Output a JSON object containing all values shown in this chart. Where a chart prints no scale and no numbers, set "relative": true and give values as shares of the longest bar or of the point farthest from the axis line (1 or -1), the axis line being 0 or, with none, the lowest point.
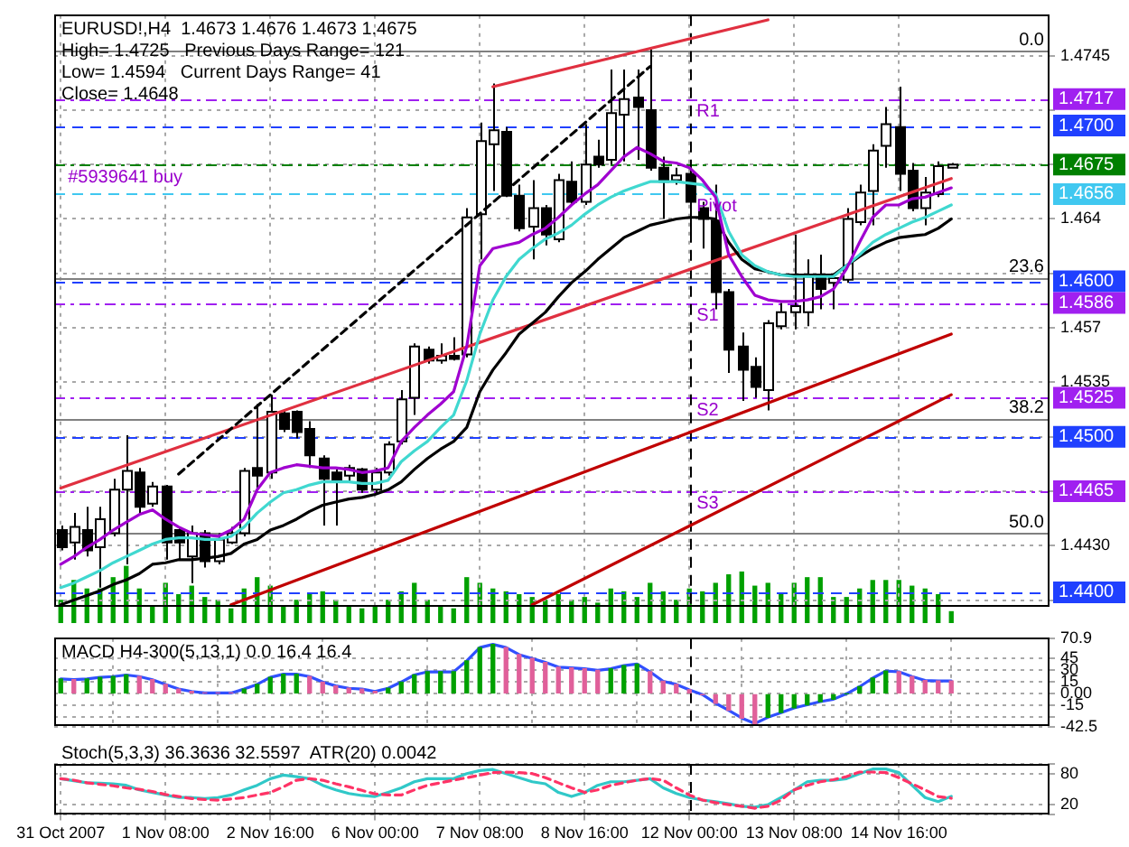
{
  "chart_data": [
    {
      "type": "candlestick",
      "title": "EURUSD!,H4  1.4673 1.4676 1.4673 1.4675",
      "categories": [
        "31 Oct 2007",
        null,
        null,
        null,
        null,
        null,
        null,
        null,
        "1 Nov 08:00",
        null,
        null,
        null,
        null,
        null,
        null,
        null,
        "2 Nov 16:00",
        null,
        null,
        null,
        null,
        null,
        null,
        null,
        "6 Nov 00:00",
        null,
        null,
        null,
        null,
        null,
        null,
        null,
        "7 Nov 08:00",
        null,
        null,
        null,
        null,
        null,
        null,
        null,
        "8 Nov 16:00",
        null,
        null,
        null,
        null,
        null,
        null,
        null,
        "12 Nov 00:00",
        null,
        null,
        null,
        null,
        null,
        null,
        null,
        "13 Nov 08:00",
        null,
        null,
        null,
        null,
        null,
        null,
        null,
        "14 Nov 16:00",
        null,
        null,
        null,
        null,
        null,
        null,
        null,
        null,
        null,
        null,
        null
      ],
      "ohlc": [
        [
          1.444,
          1.4443,
          1.4427,
          1.4429
        ],
        [
          1.4432,
          1.4451,
          1.4421,
          1.4442
        ],
        [
          1.444,
          1.4455,
          1.4423,
          1.4427
        ],
        [
          1.4429,
          1.4455,
          1.4403,
          1.4447
        ],
        [
          1.4438,
          1.4473,
          1.4436,
          1.4466
        ],
        [
          1.4466,
          1.4501,
          1.4418,
          1.4478
        ],
        [
          1.4477,
          1.448,
          1.4451,
          1.4455
        ],
        [
          1.4457,
          1.4471,
          1.4455,
          1.4468
        ],
        [
          1.4468,
          1.4469,
          1.4421,
          1.4432
        ],
        [
          1.444,
          1.4442,
          1.4421,
          1.4432
        ],
        [
          1.4423,
          1.4443,
          1.4406,
          1.4438
        ],
        [
          1.4438,
          1.444,
          1.4416,
          1.442
        ],
        [
          1.442,
          1.4438,
          1.4418,
          1.4434
        ],
        [
          1.4432,
          1.4442,
          1.4431,
          1.4438
        ],
        [
          1.4438,
          1.448,
          1.4436,
          1.4478
        ],
        [
          1.448,
          1.4521,
          1.4466,
          1.4475
        ],
        [
          1.4477,
          1.4527,
          1.4473,
          1.4516
        ],
        [
          1.4515,
          1.4517,
          1.4503,
          1.4505
        ],
        [
          1.4516,
          1.4517,
          1.4499,
          1.4503
        ],
        [
          1.4505,
          1.451,
          1.448,
          1.4488
        ],
        [
          1.4486,
          1.4488,
          1.4443,
          1.4473
        ],
        [
          1.4477,
          1.4479,
          1.4443,
          1.4471
        ],
        [
          1.4475,
          1.4482,
          1.4471,
          1.448
        ],
        [
          1.4479,
          1.448,
          1.4464,
          1.4466
        ],
        [
          1.4466,
          1.448,
          1.4464,
          1.4477
        ],
        [
          1.4477,
          1.4497,
          1.4475,
          1.4495
        ],
        [
          1.4497,
          1.453,
          1.4495,
          1.4524
        ],
        [
          1.4525,
          1.456,
          1.4514,
          1.4558
        ],
        [
          1.4556,
          1.4558,
          1.4547,
          1.4549
        ],
        [
          1.4549,
          1.456,
          1.4547,
          1.4552
        ],
        [
          1.4552,
          1.4564,
          1.4549,
          1.455
        ],
        [
          1.4553,
          1.4647,
          1.4551,
          1.4641
        ],
        [
          1.4643,
          1.4702,
          1.4614,
          1.469
        ],
        [
          1.4688,
          1.4727,
          1.4658,
          1.4697
        ],
        [
          1.4696,
          1.4699,
          1.4654,
          1.4655
        ],
        [
          1.4655,
          1.4662,
          1.4632,
          1.4634
        ],
        [
          1.4635,
          1.4665,
          1.4614,
          1.4647
        ],
        [
          1.4647,
          1.4649,
          1.4623,
          1.463
        ],
        [
          1.4627,
          1.4669,
          1.4625,
          1.4665
        ],
        [
          1.4664,
          1.4677,
          1.4649,
          1.4651
        ],
        [
          1.4651,
          1.4701,
          1.4649,
          1.4675
        ],
        [
          1.468,
          1.4691,
          1.4673,
          1.4675
        ],
        [
          1.4678,
          1.4736,
          1.4675,
          1.4708
        ],
        [
          1.4707,
          1.4736,
          1.4677,
          1.4717
        ],
        [
          1.4718,
          1.4736,
          1.4678,
          1.4712
        ],
        [
          1.471,
          1.4749,
          1.4671,
          1.4673
        ],
        [
          1.4673,
          1.468,
          1.464,
          1.4664
        ],
        [
          1.4665,
          1.4673,
          1.4662,
          1.4668
        ],
        [
          1.4669,
          1.4673,
          1.4627,
          1.4651
        ],
        [
          1.4647,
          1.4651,
          1.4621,
          1.464
        ],
        [
          1.4639,
          1.4662,
          1.4582,
          1.4593
        ],
        [
          1.4593,
          1.4595,
          1.4541,
          1.4556
        ],
        [
          1.4558,
          1.4567,
          1.4523,
          1.4543
        ],
        [
          1.4545,
          1.4551,
          1.4525,
          1.4532
        ],
        [
          1.453,
          1.4575,
          1.4517,
          1.4573
        ],
        [
          1.4571,
          1.4586,
          1.4569,
          1.458
        ],
        [
          1.458,
          1.463,
          1.4569,
          1.4584
        ],
        [
          1.458,
          1.4614,
          1.4571,
          1.4603
        ],
        [
          1.4604,
          1.4617,
          1.4582,
          1.4595
        ],
        [
          1.4599,
          1.4604,
          1.4582,
          1.4602
        ],
        [
          1.4601,
          1.4647,
          1.4599,
          1.464
        ],
        [
          1.4638,
          1.4662,
          1.4636,
          1.4657
        ],
        [
          1.4658,
          1.4688,
          1.4636,
          1.4684
        ],
        [
          1.4687,
          1.4712,
          1.4673,
          1.4701
        ],
        [
          1.4699,
          1.4725,
          1.4658,
          1.4669
        ],
        [
          1.4671,
          1.4676,
          1.4645,
          1.4647
        ],
        [
          1.4647,
          1.4667,
          1.4636,
          1.4657
        ],
        [
          1.4656,
          1.4677,
          1.4654,
          1.4674
        ],
        [
          1.4673,
          1.4676,
          1.4673,
          1.4675
        ],
        null,
        null,
        null,
        null,
        null,
        null,
        null
      ],
      "series": [
        {
          "type": "line",
          "color": "#a000d0",
          "values": [
            1.4418,
            1.4423,
            1.4429,
            1.4434,
            1.444,
            1.4445,
            1.445,
            1.4453,
            1.4447,
            1.4442,
            1.4438,
            1.4437,
            1.4436,
            1.444,
            1.4447,
            1.4466,
            1.4477,
            1.448,
            1.4482,
            1.4481,
            1.448,
            1.448,
            1.4479,
            1.4477,
            1.4478,
            1.448,
            1.4497,
            1.4506,
            1.4514,
            1.4521,
            1.4529,
            1.4558,
            1.461,
            1.4621,
            1.4623,
            1.4625,
            1.463,
            1.4634,
            1.4641,
            1.4649,
            1.4656,
            1.4662,
            1.4671,
            1.468,
            1.4686,
            1.4682,
            1.4677,
            1.4676,
            1.4673,
            1.4665,
            1.4654,
            1.4617,
            1.4603,
            1.4591,
            1.4588,
            1.4587,
            1.4587,
            1.4588,
            1.459,
            1.4595,
            1.4608,
            1.4625,
            1.4641,
            1.4649,
            1.4649,
            1.4653,
            1.4654,
            1.4657,
            1.466,
            null,
            null,
            null,
            null,
            null,
            null,
            null
          ]
        },
        {
          "type": "line",
          "color": "#40d8d0",
          "values": [
            1.4403,
            1.4406,
            1.441,
            1.4414,
            1.4419,
            1.4423,
            1.4427,
            1.4431,
            1.4434,
            1.4435,
            1.4435,
            1.4434,
            1.4434,
            1.4436,
            1.4442,
            1.4451,
            1.4458,
            1.4464,
            1.4466,
            1.4469,
            1.4471,
            1.4471,
            1.4471,
            1.447,
            1.447,
            1.4472,
            1.4484,
            1.4491,
            1.4497,
            1.4506,
            1.4514,
            1.4536,
            1.4566,
            1.4588,
            1.4603,
            1.4614,
            1.4621,
            1.4627,
            1.4631,
            1.4636,
            1.4643,
            1.4649,
            1.4654,
            1.4658,
            1.4661,
            1.4664,
            1.4664,
            1.4664,
            1.4663,
            1.4662,
            1.4656,
            1.4632,
            1.4617,
            1.461,
            1.4606,
            1.4604,
            1.4603,
            1.4603,
            1.4603,
            1.4603,
            1.461,
            1.4617,
            1.4625,
            1.463,
            1.4634,
            1.4638,
            1.4641,
            1.4645,
            1.4649,
            null,
            null,
            null,
            null,
            null,
            null,
            null
          ]
        },
        {
          "type": "line",
          "color": "#000000",
          "values": [
            1.4392,
            1.4395,
            1.4398,
            1.4401,
            1.4405,
            1.4408,
            1.4412,
            1.4418,
            1.4419,
            1.4421,
            1.4421,
            1.4422,
            1.4423,
            1.4425,
            1.4431,
            1.4434,
            1.444,
            1.4443,
            1.4447,
            1.4452,
            1.4456,
            1.4458,
            1.446,
            1.4461,
            1.4463,
            1.4466,
            1.4471,
            1.4479,
            1.4486,
            1.4492,
            1.4497,
            1.4506,
            1.4529,
            1.4543,
            1.4554,
            1.4566,
            1.4573,
            1.458,
            1.459,
            1.4599,
            1.4606,
            1.4614,
            1.4621,
            1.4628,
            1.4632,
            1.4636,
            1.4638,
            1.464,
            1.4641,
            1.4641,
            1.464,
            1.4625,
            1.4614,
            1.4608,
            1.4606,
            1.4604,
            1.4604,
            1.4604,
            1.4604,
            1.4604,
            1.461,
            1.4616,
            1.4621,
            1.4625,
            1.4628,
            1.4629,
            1.463,
            1.4634,
            1.464,
            null,
            null,
            null,
            null,
            null,
            null,
            null
          ]
        },
        {
          "type": "line",
          "color": "#c00000",
          "values": [
            null,
            null,
            null,
            null,
            null,
            null,
            null,
            null,
            null,
            null,
            null,
            null,
            null,
            1.4392,
            null,
            null,
            null,
            null,
            null,
            null,
            null,
            null,
            null,
            null,
            null,
            null,
            null,
            null,
            null,
            null,
            null,
            null,
            null,
            null,
            null,
            null,
            null,
            null,
            null,
            null,
            null,
            null,
            null,
            null,
            null,
            null,
            null,
            null,
            null,
            null,
            null,
            null,
            null,
            null,
            null,
            null,
            null,
            null,
            null,
            null,
            null,
            null,
            null,
            null,
            null,
            null,
            null,
            null,
            1.4566,
            null,
            null,
            null,
            null,
            null,
            null,
            null
          ]
        },
        {
          "type": "line",
          "color": "#c00000",
          "values": [
            null,
            null,
            null,
            null,
            null,
            null,
            null,
            null,
            null,
            null,
            null,
            null,
            null,
            null,
            null,
            null,
            null,
            null,
            null,
            null,
            null,
            null,
            null,
            null,
            null,
            null,
            null,
            null,
            null,
            null,
            null,
            null,
            null,
            null,
            null,
            null,
            1.4392,
            null,
            null,
            null,
            null,
            null,
            null,
            null,
            null,
            null,
            null,
            null,
            null,
            null,
            null,
            null,
            null,
            null,
            null,
            null,
            null,
            null,
            null,
            null,
            null,
            null,
            null,
            null,
            null,
            null,
            null,
            null,
            1.4527,
            null,
            null,
            null,
            null,
            null,
            null,
            null
          ]
        },
        {
          "type": "line",
          "color": "#e03040",
          "values": [
            null,
            null,
            null,
            null,
            null,
            null,
            null,
            null,
            null,
            null,
            null,
            null,
            null,
            null,
            null,
            null,
            null,
            null,
            null,
            null,
            null,
            null,
            null,
            null,
            null,
            null,
            null,
            null,
            null,
            null,
            null,
            null,
            null,
            1.4725,
            null,
            null,
            null,
            null,
            null,
            null,
            null,
            null,
            null,
            null,
            null,
            null,
            null,
            null,
            null,
            null,
            null,
            null,
            null,
            null,
            1.4768,
            null,
            null,
            null,
            null,
            null,
            null,
            null,
            null,
            null,
            null,
            null,
            null,
            null,
            null,
            null,
            null,
            null,
            null,
            null,
            null,
            null
          ]
        },
        {
          "type": "line",
          "color": "#e03040",
          "values": [
            1.4467,
            null,
            null,
            null,
            null,
            null,
            null,
            null,
            null,
            null,
            null,
            null,
            null,
            null,
            null,
            null,
            null,
            null,
            null,
            null,
            null,
            null,
            null,
            null,
            null,
            null,
            null,
            null,
            null,
            null,
            null,
            null,
            null,
            null,
            null,
            null,
            null,
            null,
            null,
            null,
            null,
            null,
            null,
            null,
            null,
            null,
            null,
            null,
            null,
            null,
            null,
            null,
            null,
            null,
            null,
            null,
            null,
            null,
            null,
            null,
            null,
            null,
            null,
            null,
            null,
            null,
            null,
            null,
            1.4666,
            null,
            null,
            null,
            null,
            null,
            null,
            null
          ]
        },
        {
          "type": "line",
          "color": "#000000",
          "line_style": "dashed",
          "values": [
            null,
            null,
            null,
            null,
            null,
            null,
            null,
            null,
            null,
            1.4476,
            null,
            null,
            null,
            null,
            null,
            null,
            null,
            null,
            null,
            null,
            null,
            null,
            null,
            null,
            null,
            null,
            null,
            null,
            null,
            null,
            null,
            null,
            null,
            null,
            null,
            null,
            null,
            null,
            null,
            null,
            null,
            null,
            null,
            null,
            null,
            1.4738,
            null,
            null,
            null,
            null,
            null,
            null,
            null,
            null,
            null,
            null,
            null,
            null,
            null,
            null,
            null,
            null,
            null,
            null,
            null,
            null,
            null,
            null,
            null,
            null,
            null,
            null,
            null,
            null,
            null,
            null
          ]
        }
      ],
      "ylim": [
        1.439,
        1.4771
      ],
      "yticks": [
        {
          "value": 1.4395,
          "label": null
        },
        {
          "value": 1.443,
          "label": "1.4430"
        },
        {
          "value": 1.4465,
          "label": null
        },
        {
          "value": 1.45,
          "label": null
        },
        1.4535,
        1.457,
        {
          "value": 1.4605,
          "label": null
        },
        1.464,
        {
          "value": 1.4675,
          "label": null
        },
        {
          "value": 1.471,
          "label": null
        },
        1.4745
      ],
      "tick_labels": "y",
      "grid": true,
      "ref_lines": [
        {
          "axis": "y",
          "value": 1.4748,
          "color": "#808080",
          "line_style": "solid"
        },
        {
          "axis": "y",
          "value": 1.4602,
          "color": "#808080",
          "line_style": "solid"
        },
        {
          "axis": "y",
          "value": 1.4512,
          "color": "#808080",
          "line_style": "solid"
        },
        {
          "axis": "y",
          "value": 1.4438,
          "color": "#808080",
          "line_style": "solid"
        },
        {
          "axis": "y",
          "value": 1.4717,
          "label": "1.4717",
          "color": "#a020f0",
          "line_style": "dotted"
        },
        {
          "axis": "y",
          "value": 1.47,
          "label": "1.4700",
          "color": "#2040ff",
          "line_style": "dashed"
        },
        {
          "axis": "y",
          "value": 1.4675,
          "label": "1.4675",
          "color": "#008000",
          "line_style": "dotted"
        },
        {
          "axis": "y",
          "value": 1.4656,
          "label": "1.4656",
          "color": "#40c8f0",
          "line_style": "dashed"
        },
        {
          "axis": "y",
          "value": 1.46,
          "label": "1.4600",
          "color": "#2040ff",
          "line_style": "dashed"
        },
        {
          "axis": "y",
          "value": 1.4586,
          "label": "1.4586",
          "color": "#a020f0",
          "line_style": "dotted"
        },
        {
          "axis": "y",
          "value": 1.4525,
          "label": "1.4525",
          "color": "#a020f0",
          "line_style": "dotted"
        },
        {
          "axis": "y",
          "value": 1.45,
          "label": "1.4500",
          "color": "#2040ff",
          "line_style": "dashed"
        },
        {
          "axis": "y",
          "value": 1.4465,
          "label": "1.4465",
          "color": "#a020f0",
          "line_style": "dotted"
        },
        {
          "axis": "y",
          "value": 1.44,
          "label": "1.4400",
          "color": "#2040ff",
          "line_style": "dashed"
        },
        {
          "axis": "x",
          "value": "12 Nov 00:00",
          "color": "#000000",
          "line_style": "dashed"
        }
      ],
      "annotations": [
        "High= 1.4725   Previous Days Range= 121",
        "Low= 1.4594   Current Days Range= 41",
        "Close= 1.4648",
        {
          "text": "#5939641 buy",
          "x": "31 Oct 2007",
          "y": 1.4675
        },
        {
          "text": "0.0",
          "y": 1.4748
        },
        {
          "text": "23.6",
          "y": 1.4602
        },
        {
          "text": "38.2",
          "y": 1.4512
        },
        {
          "text": "50.0",
          "y": 1.4438
        },
        {
          "text": "R1",
          "x": "12 Nov 00:00",
          "y": 1.4717
        },
        {
          "text": "Pivot",
          "x": "12 Nov 00:00",
          "y": 1.4656
        },
        {
          "text": "S1",
          "x": "12 Nov 00:00",
          "y": 1.4586
        },
        {
          "text": "S2",
          "x": "12 Nov 00:00",
          "y": 1.4525
        },
        {
          "text": "S3",
          "x": "12 Nov 00:00",
          "y": 1.4465
        }
      ]
    },
    {
      "type": "bar",
      "relative": true,
      "tick_labels": false,
      "color": "#00a000",
      "categories": [
        "31 Oct 2007",
        null,
        null,
        null,
        null,
        null,
        null,
        null,
        "1 Nov 08:00",
        null,
        null,
        null,
        null,
        null,
        null,
        null,
        "2 Nov 16:00",
        null,
        null,
        null,
        null,
        null,
        null,
        null,
        "6 Nov 00:00",
        null,
        null,
        null,
        null,
        null,
        null,
        null,
        "7 Nov 08:00",
        null,
        null,
        null,
        null,
        null,
        null,
        null,
        "8 Nov 16:00",
        null,
        null,
        null,
        null,
        null,
        null,
        null,
        "12 Nov 00:00",
        null,
        null,
        null,
        null,
        null,
        null,
        null,
        "13 Nov 08:00",
        null,
        null,
        null,
        null,
        null,
        null,
        null,
        "14 Nov 16:00",
        null,
        null,
        null,
        null,
        null,
        null,
        null,
        null,
        null,
        null,
        null
      ],
      "values": [
        0.4,
        0.75,
        0.6,
        0.6,
        0.8,
        1,
        0.6,
        0.3,
        0.7,
        0.5,
        0.65,
        0.45,
        0.4,
        0.25,
        0.6,
        0.8,
        0.65,
        0.3,
        0.4,
        0.5,
        0.55,
        0.4,
        0.3,
        0.25,
        0.3,
        0.4,
        0.55,
        0.7,
        0.4,
        0.3,
        0.25,
        0.8,
        0.7,
        0.6,
        0.55,
        0.5,
        0.45,
        0.4,
        0.5,
        0.4,
        0.45,
        0.35,
        0.6,
        0.55,
        0.45,
        0.7,
        0.55,
        0.4,
        0.6,
        0.55,
        0.7,
        0.85,
        0.9,
        0.65,
        0.7,
        0.5,
        0.7,
        0.8,
        0.8,
        0.45,
        0.45,
        0.6,
        0.75,
        0.75,
        0.75,
        0.65,
        0.6,
        0.5,
        0.2,
        null,
        null,
        null,
        null,
        null,
        null,
        null
      ]
    },
    {
      "type": "bar",
      "title": "MACD H4-300(5,13,1) 0.0 16.4 16.4",
      "tick_labels": "y",
      "grid": true,
      "categories": [
        "31 Oct 2007",
        null,
        null,
        null,
        null,
        null,
        null,
        null,
        "1 Nov 08:00",
        null,
        null,
        null,
        null,
        null,
        null,
        null,
        "2 Nov 16:00",
        null,
        null,
        null,
        null,
        null,
        null,
        null,
        "6 Nov 00:00",
        null,
        null,
        null,
        null,
        null,
        null,
        null,
        "7 Nov 08:00",
        null,
        null,
        null,
        null,
        null,
        null,
        null,
        "8 Nov 16:00",
        null,
        null,
        null,
        null,
        null,
        null,
        null,
        "12 Nov 00:00",
        null,
        null,
        null,
        null,
        null,
        null,
        null,
        "13 Nov 08:00",
        null,
        null,
        null,
        null,
        null,
        null,
        null,
        "14 Nov 16:00",
        null,
        null,
        null,
        null,
        null,
        null,
        null,
        null,
        null,
        null,
        null
      ],
      "series": [
        {
          "type": "bar",
          "colors": [
            "#00a000",
            "#e0609a",
            "#00a000",
            "#00a000",
            "#00a000",
            "#00a000",
            "#e0609a",
            "#e0609a",
            "#e0609a",
            "#e0609a",
            "#e0609a",
            "#e0609a",
            "#e0609a",
            "#e0609a",
            "#00a000",
            "#00a000",
            "#00a000",
            "#00a000",
            "#00a000",
            "#e0609a",
            "#e0609a",
            "#e0609a",
            "#e0609a",
            "#e0609a",
            "#e0609a",
            "#00a000",
            "#00a000",
            "#00a000",
            "#00a000",
            "#00a000",
            "#00a000",
            "#00a000",
            "#00a000",
            "#00a000",
            "#e0609a",
            "#e0609a",
            "#e0609a",
            "#e0609a",
            "#e0609a",
            "#e0609a",
            "#e0609a",
            "#e0609a",
            "#00a000",
            "#00a000",
            "#00a000",
            "#e0609a",
            "#e0609a",
            "#e0609a",
            "#e0609a",
            "#e0609a",
            "#e0609a",
            "#e0609a",
            "#e0609a",
            "#e0609a",
            "#00a000",
            "#00a000",
            "#00a000",
            "#00a000",
            "#00a000",
            "#00a000",
            "#00a000",
            "#00a000",
            "#00a000",
            "#00a000",
            "#e0609a",
            "#e0609a",
            "#e0609a",
            "#e0609a",
            "#e0609a",
            null,
            null,
            null,
            null,
            null,
            null,
            null
          ],
          "values": [
            19,
            18,
            19,
            21,
            22,
            24,
            22,
            18,
            12,
            6,
            3,
            1,
            1,
            1,
            6,
            12,
            21,
            25,
            25,
            22,
            15,
            10,
            7,
            6,
            3,
            7,
            15,
            24,
            28,
            28,
            28,
            42,
            59,
            63,
            59,
            50,
            45,
            40,
            34,
            33,
            32,
            30,
            32,
            36,
            38,
            28,
            16,
            12,
            5,
            -1,
            -12,
            -21,
            -31,
            -38,
            -30,
            -24,
            -18,
            -14,
            -10,
            -7,
            0,
            9,
            20,
            29,
            28,
            22,
            17,
            16.4,
            16.4,
            null,
            null,
            null,
            null,
            null,
            null,
            null
          ]
        },
        {
          "type": "line",
          "color": "#3050ff",
          "values": [
            19,
            18,
            19,
            21,
            22,
            24,
            22,
            18,
            12,
            6,
            3,
            1,
            1,
            1,
            6,
            12,
            21,
            25,
            25,
            22,
            15,
            10,
            7,
            6,
            3,
            7,
            15,
            24,
            28,
            28,
            28,
            42,
            59,
            63,
            59,
            50,
            45,
            40,
            34,
            33,
            32,
            30,
            32,
            36,
            38,
            28,
            16,
            12,
            5,
            -1,
            -12,
            -21,
            -31,
            -38,
            -30,
            -24,
            -18,
            -14,
            -10,
            -7,
            0,
            9,
            20,
            29,
            28,
            22,
            17,
            16.4,
            16.4,
            null,
            null,
            null,
            null,
            null,
            null,
            null
          ]
        }
      ],
      "ylim": [
        -42.5,
        70.9
      ],
      "yticks": [
        -42.5,
        {
          "value": -30,
          "label": null
        },
        -15,
        {
          "value": 0,
          "label": "0.00"
        },
        15,
        30,
        45,
        70.9
      ],
      "ref_lines": [
        {
          "axis": "x",
          "value": "12 Nov 00:00",
          "color": "#000000",
          "line_style": "dashed"
        }
      ]
    },
    {
      "type": "line",
      "title": "Stoch(5,3,3) 36.3636 32.5597  ATR(20) 0.0042",
      "grid": true,
      "categories": [
        "31 Oct 2007",
        null,
        null,
        null,
        null,
        null,
        null,
        null,
        "1 Nov 08:00",
        null,
        null,
        null,
        null,
        null,
        null,
        null,
        "2 Nov 16:00",
        null,
        null,
        null,
        null,
        null,
        null,
        null,
        "6 Nov 00:00",
        null,
        null,
        null,
        null,
        null,
        null,
        null,
        "7 Nov 08:00",
        null,
        null,
        null,
        null,
        null,
        null,
        null,
        "8 Nov 16:00",
        null,
        null,
        null,
        null,
        null,
        null,
        null,
        "12 Nov 00:00",
        null,
        null,
        null,
        null,
        null,
        null,
        null,
        "13 Nov 08:00",
        null,
        null,
        null,
        null,
        null,
        null,
        null,
        "14 Nov 16:00",
        null,
        null,
        null,
        null,
        null,
        null,
        null,
        null,
        null,
        null,
        null
      ],
      "series": [
        {
          "color": "#30c8c8",
          "values": [
            71,
            67,
            63,
            62,
            61,
            58,
            49,
            44,
            39,
            34,
            34,
            32,
            34,
            39,
            49,
            58,
            71,
            78,
            75,
            71,
            58,
            49,
            42,
            38,
            36,
            44,
            53,
            65,
            71,
            71,
            71,
            81,
            87,
            89,
            81,
            73,
            65,
            61,
            44,
            36,
            44,
            58,
            65,
            65,
            68,
            71,
            53,
            42,
            34,
            29,
            26,
            22,
            17,
            15,
            20,
            34,
            49,
            65,
            68,
            68,
            71,
            81,
            90,
            90,
            83,
            58,
            34,
            26,
            36.3636,
            null,
            null,
            null,
            null,
            null,
            null,
            null
          ]
        },
        {
          "color": "#ff3366",
          "line_style": "dashed",
          "values": [
            71,
            68,
            63,
            60,
            57,
            53,
            50,
            46,
            40,
            36,
            32,
            30,
            29,
            31,
            34,
            39,
            44,
            55,
            68,
            71,
            68,
            61,
            55,
            48,
            41,
            39,
            39,
            49,
            58,
            63,
            68,
            73,
            78,
            83,
            84,
            83,
            81,
            73,
            63,
            53,
            44,
            49,
            58,
            63,
            68,
            71,
            68,
            53,
            39,
            29,
            24,
            20,
            17,
            13,
            17,
            29,
            49,
            58,
            65,
            69,
            75,
            84,
            84,
            83,
            73,
            61,
            49,
            36,
            32.5597,
            null,
            null,
            null,
            null,
            null,
            null,
            null
          ]
        }
      ],
      "ylim": [
        0,
        100
      ],
      "yticks": [
        {
          "value": 0,
          "label": null
        },
        20,
        80,
        {
          "value": 100,
          "label": null
        }
      ],
      "ref_lines": [
        {
          "axis": "x",
          "value": "12 Nov 00:00",
          "color": "#000000",
          "line_style": "dashed"
        }
      ]
    }
  ]
}
